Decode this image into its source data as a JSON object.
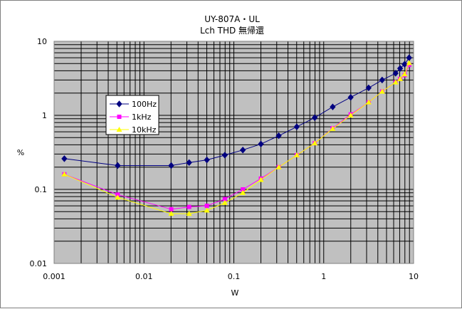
{
  "chart_data": {
    "type": "line",
    "title": "UY-807A・UL",
    "subtitle": "Lch THD 無帰還",
    "xlabel": "W",
    "ylabel": "%",
    "xscale": "log",
    "yscale": "log",
    "xlim": [
      0.001,
      10
    ],
    "ylim": [
      0.01,
      10
    ],
    "x_tick_labels": [
      "0.001",
      "0.01",
      "0.1",
      "1",
      "10"
    ],
    "y_tick_labels": [
      "0.01",
      "0.1",
      "1",
      "10"
    ],
    "grid": true,
    "legend_position": "left-middle",
    "plot_background": "#c0c0c0",
    "series": [
      {
        "name": "100Hz",
        "color": "#000080",
        "marker": "diamond",
        "x": [
          0.0013,
          0.0051,
          0.0201,
          0.0318,
          0.0501,
          0.0794,
          0.1259,
          0.2,
          0.3162,
          0.5012,
          0.7943,
          1.259,
          1.995,
          3.162,
          4.467,
          6.31,
          7.079,
          7.943,
          8.913
        ],
        "y": [
          0.26,
          0.21,
          0.21,
          0.23,
          0.25,
          0.29,
          0.34,
          0.41,
          0.53,
          0.7,
          0.93,
          1.3,
          1.75,
          2.35,
          3.0,
          3.7,
          4.3,
          4.9,
          6.0
        ]
      },
      {
        "name": "1kHz",
        "color": "#ff00ff",
        "marker": "square",
        "x": [
          0.0013,
          0.0051,
          0.0201,
          0.0318,
          0.0501,
          0.0794,
          0.1259,
          0.2,
          0.3162,
          0.5012,
          0.7943,
          1.259,
          1.995,
          3.162,
          4.467,
          6.31,
          7.079,
          7.943,
          8.913
        ],
        "y": [
          0.16,
          0.085,
          0.054,
          0.058,
          0.06,
          0.074,
          0.1,
          0.14,
          0.2,
          0.29,
          0.42,
          0.67,
          1.03,
          1.5,
          2.1,
          2.8,
          3.1,
          3.5,
          4.8
        ]
      },
      {
        "name": "10kHz",
        "color": "#ffff00",
        "marker": "triangle",
        "x": [
          0.0013,
          0.0051,
          0.0201,
          0.0318,
          0.0501,
          0.0794,
          0.1259,
          0.2,
          0.3162,
          0.5012,
          0.7943,
          1.259,
          1.995,
          3.162,
          4.467,
          6.31,
          7.079,
          7.943,
          8.913
        ],
        "y": [
          0.16,
          0.078,
          0.047,
          0.047,
          0.052,
          0.066,
          0.09,
          0.135,
          0.2,
          0.29,
          0.42,
          0.66,
          1.0,
          1.5,
          2.1,
          2.8,
          3.1,
          3.6,
          5.1
        ]
      }
    ]
  }
}
